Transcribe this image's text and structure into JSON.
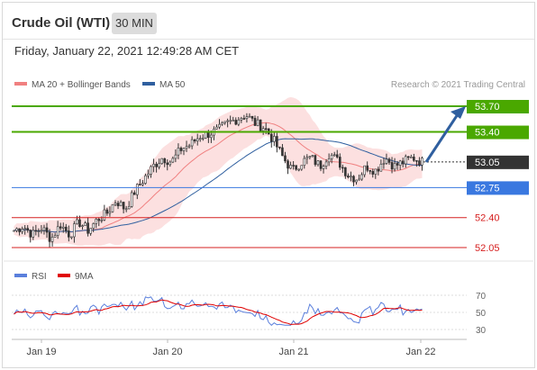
{
  "header": {
    "title": "Crude Oil (WTI)",
    "timeframe": "30 MIN",
    "datetime": "Friday, January 22, 2021 12:49:28 AM CET"
  },
  "legend": {
    "bollinger_label": "MA 20 + Bollinger Bands",
    "ma50_label": "MA 50",
    "credit": "Research © 2021 Trading Central",
    "bollinger_color": "#f08080",
    "ma50_color": "#2f5f9f"
  },
  "chart_data": [
    {
      "type": "candlestick",
      "ylim": [
        51.75,
        54.0
      ],
      "categories": [
        "Jan 19",
        "Jan 20",
        "Jan 21",
        "Jan 22"
      ],
      "levels": [
        {
          "value": 53.7,
          "label": "53.70",
          "kind": "resistance",
          "color": "#4aa800"
        },
        {
          "value": 53.4,
          "label": "53.40",
          "kind": "resistance",
          "color": "#4aa800"
        },
        {
          "value": 53.05,
          "label": "53.05",
          "kind": "last",
          "color": "#333333"
        },
        {
          "value": 52.75,
          "label": "52.75",
          "kind": "pivot",
          "color": "#3a78e0"
        },
        {
          "value": 52.4,
          "label": "52.40",
          "kind": "support",
          "color": "#d62020"
        },
        {
          "value": 52.05,
          "label": "52.05",
          "kind": "support",
          "color": "#d62020"
        }
      ],
      "close_path": [
        [
          "Jan 19",
          52.25
        ],
        [
          "Jan 19",
          52.3
        ],
        [
          "Jan 19",
          52.2
        ],
        [
          "Jan 19",
          52.28
        ],
        [
          "Jan 19",
          52.15
        ],
        [
          "Jan 19",
          52.32
        ],
        [
          "Jan 19",
          52.2
        ],
        [
          "Jan 19",
          52.35
        ],
        [
          "Jan 19",
          52.25
        ],
        [
          "Jan 19",
          52.38
        ],
        [
          "Jan 19",
          52.45
        ],
        [
          "Jan 19",
          52.6
        ],
        [
          "Jan 19",
          52.5
        ],
        [
          "Jan 19",
          52.7
        ],
        [
          "Jan 20",
          52.85
        ],
        [
          "Jan 20",
          53.0
        ],
        [
          "Jan 20",
          53.1
        ],
        [
          "Jan 20",
          53.05
        ],
        [
          "Jan 20",
          53.2
        ],
        [
          "Jan 20",
          53.25
        ],
        [
          "Jan 20",
          53.35
        ],
        [
          "Jan 20",
          53.38
        ],
        [
          "Jan 20",
          53.42
        ],
        [
          "Jan 20",
          53.5
        ],
        [
          "Jan 20",
          53.55
        ],
        [
          "Jan 20",
          53.6
        ],
        [
          "Jan 20",
          53.5
        ],
        [
          "Jan 20",
          53.45
        ],
        [
          "Jan 21",
          53.3
        ],
        [
          "Jan 21",
          53.1
        ],
        [
          "Jan 21",
          52.95
        ],
        [
          "Jan 21",
          53.05
        ],
        [
          "Jan 21",
          53.1
        ],
        [
          "Jan 21",
          53.0
        ],
        [
          "Jan 21",
          53.15
        ],
        [
          "Jan 21",
          53.05
        ],
        [
          "Jan 21",
          52.9
        ],
        [
          "Jan 21",
          52.85
        ],
        [
          "Jan 21",
          53.0
        ],
        [
          "Jan 21",
          52.95
        ],
        [
          "Jan 21",
          53.1
        ],
        [
          "Jan 21",
          53.0
        ],
        [
          "Jan 22",
          53.05
        ],
        [
          "Jan 22",
          53.1
        ],
        [
          "Jan 22",
          53.05
        ]
      ]
    },
    {
      "type": "line",
      "legend": [
        "RSI",
        "9MA"
      ],
      "colors": {
        "RSI": "#5a7fdc",
        "9MA": "#e00000"
      },
      "ylim": [
        25,
        75
      ],
      "y_ticks": [
        70,
        50,
        30
      ]
    }
  ],
  "rsi_labels": {
    "rsi": "RSI",
    "ma9": "9MA",
    "t70": "70",
    "t50": "50",
    "t30": "30"
  }
}
